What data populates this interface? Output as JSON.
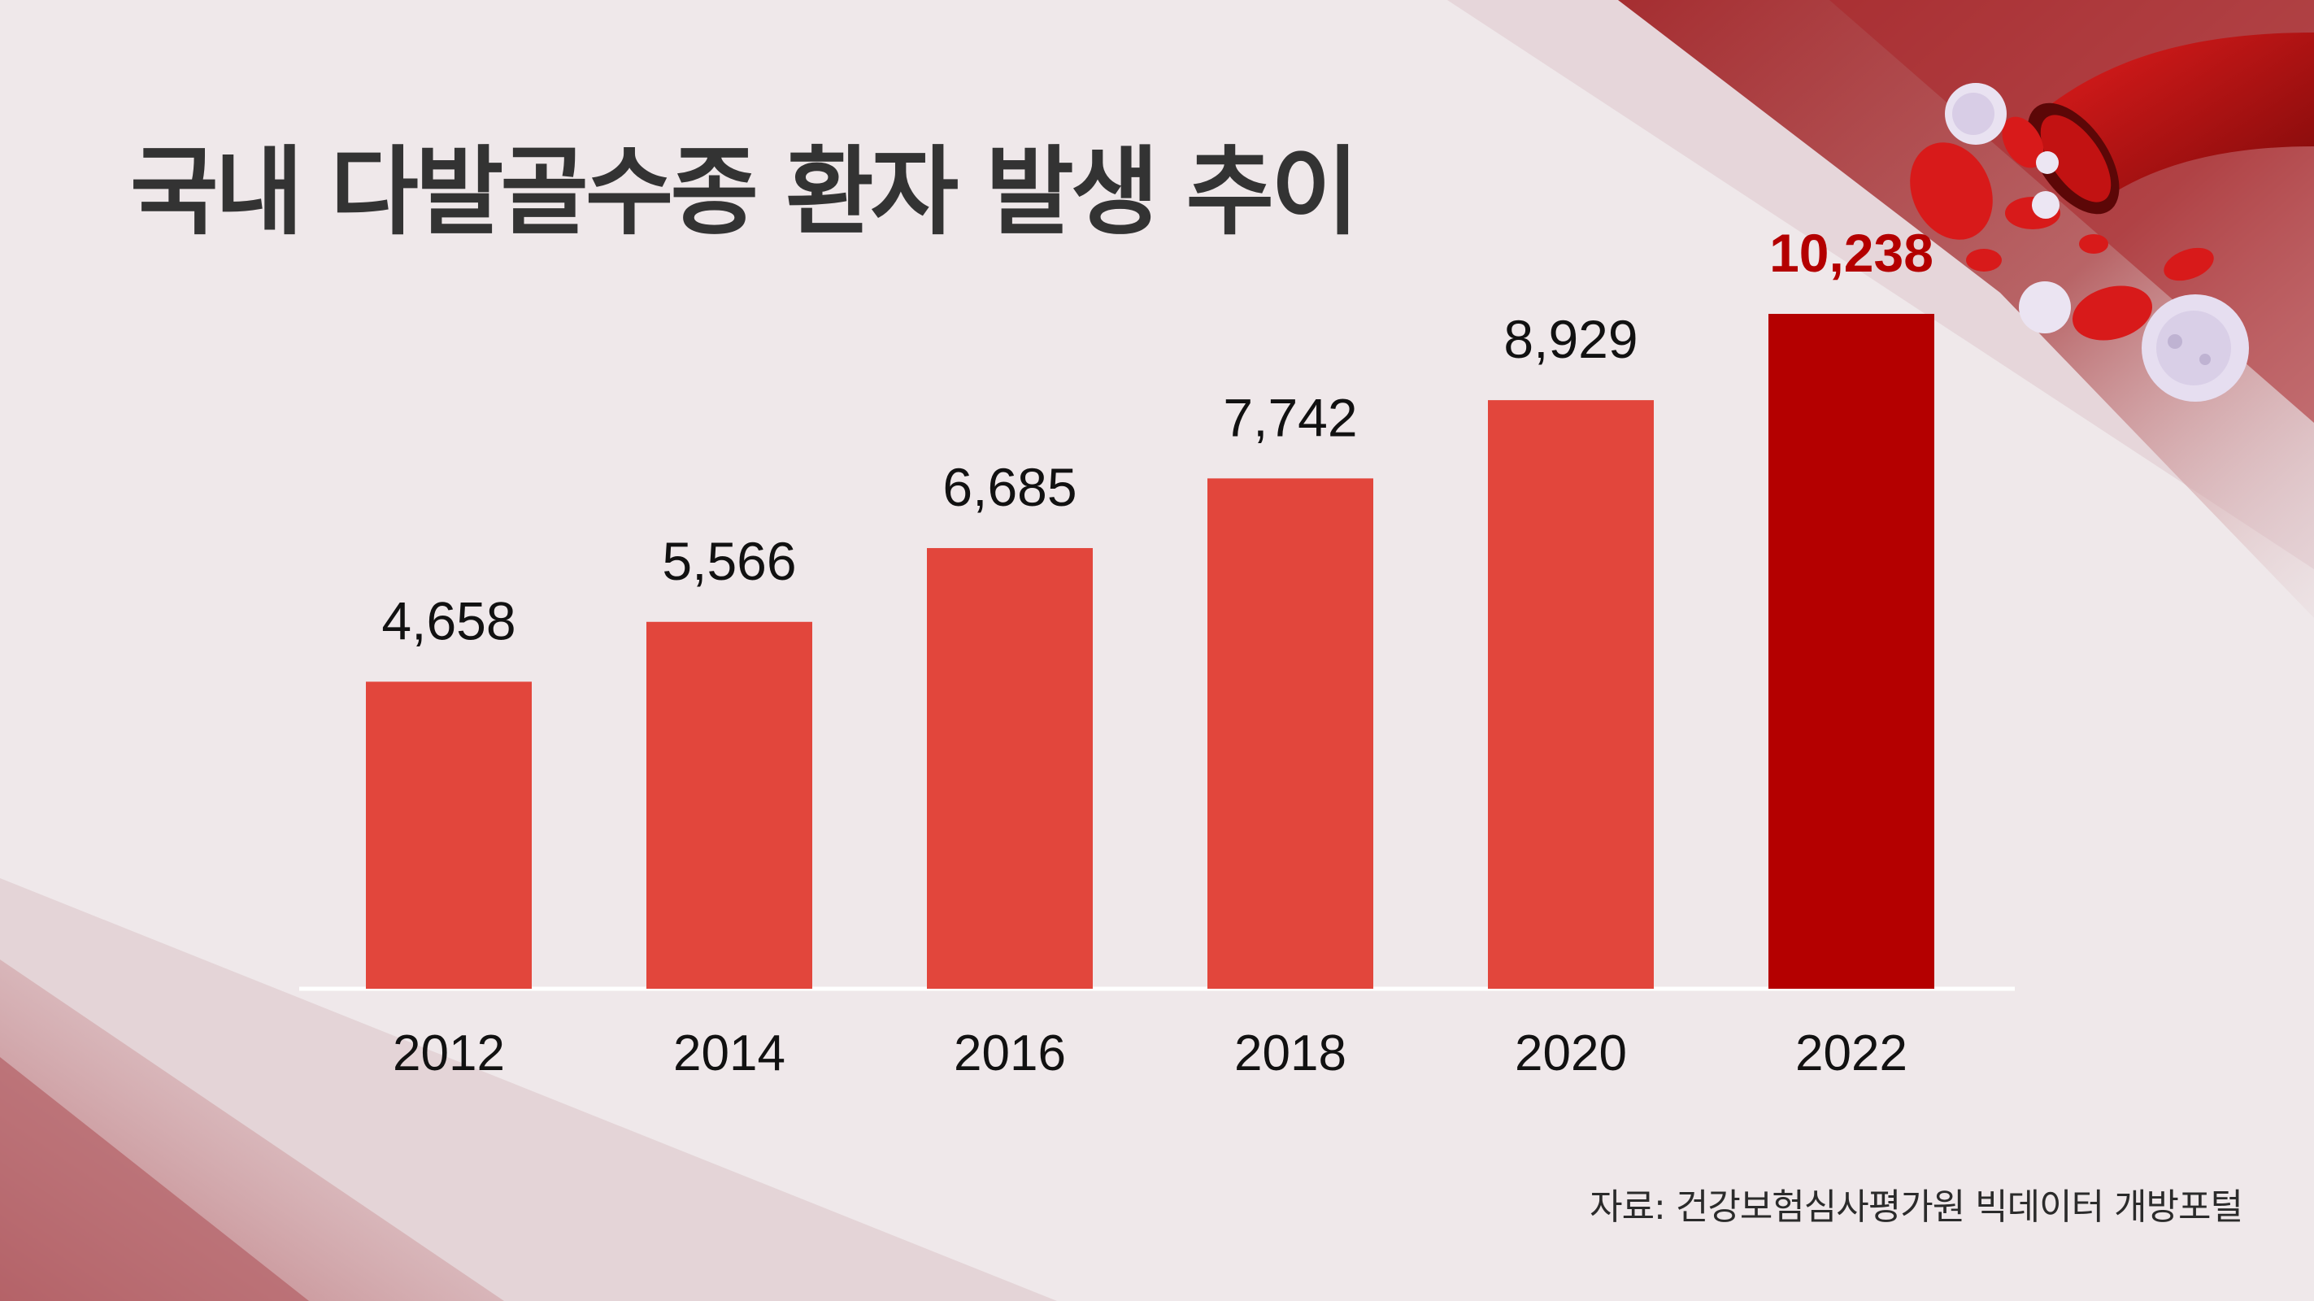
{
  "title": "국내 다발골수종 환자 발생 추이",
  "source": "자료: 건강보험심사평가원 빅데이터 개방포털",
  "colors": {
    "background": "#efe8ea",
    "bar": "#e2463c",
    "bar_highlight": "#b40000",
    "label_highlight": "#b40000",
    "title": "#333333"
  },
  "decorations": [
    "blood-vessel-illustration",
    "red-blood-cell-icon",
    "white-blood-cell-icon"
  ],
  "chart_data": {
    "type": "bar",
    "title": "국내 다발골수종 환자 발생 추이",
    "categories": [
      "2012",
      "2014",
      "2016",
      "2018",
      "2020",
      "2022"
    ],
    "values": [
      4658,
      5566,
      6685,
      7742,
      8929,
      10238
    ],
    "value_labels": [
      "4,658",
      "5,566",
      "6,685",
      "7,742",
      "8,929",
      "10,238"
    ],
    "highlight_index": 5,
    "xlabel": "",
    "ylabel": "",
    "ylim": [
      0,
      11000
    ],
    "grid": false,
    "legend": "none"
  }
}
